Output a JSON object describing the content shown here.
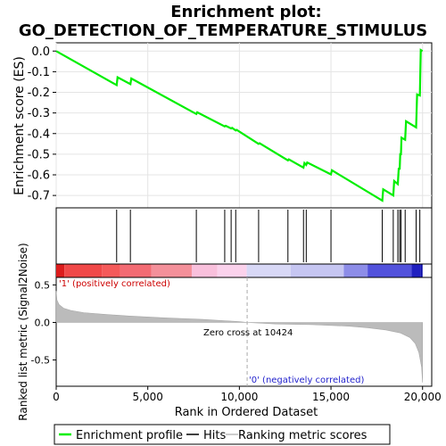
{
  "chart_data": {
    "type": "line",
    "title_line1": "Enrichment plot:",
    "title_line2": "GO_DETECTION_OF_TEMPERATURE_STIMULUS",
    "es_panel": {
      "ylabel": "Enrichment score (ES)",
      "ylim": [
        -0.76,
        0.04
      ],
      "yticks": [
        0.0,
        -0.1,
        -0.2,
        -0.3,
        -0.4,
        -0.5,
        -0.6,
        -0.7
      ],
      "ytick_labels": [
        "0.0",
        "-0.1",
        "-0.2",
        "-0.3",
        "-0.4",
        "-0.5",
        "-0.6",
        "-0.7"
      ],
      "line_color": "#00ee00",
      "points": [
        [
          0,
          0.0
        ],
        [
          3300,
          -0.165
        ],
        [
          3350,
          -0.127
        ],
        [
          4050,
          -0.16
        ],
        [
          4100,
          -0.133
        ],
        [
          7650,
          -0.305
        ],
        [
          7700,
          -0.297
        ],
        [
          9200,
          -0.365
        ],
        [
          9250,
          -0.362
        ],
        [
          9550,
          -0.375
        ],
        [
          9600,
          -0.372
        ],
        [
          9800,
          -0.385
        ],
        [
          9850,
          -0.382
        ],
        [
          11050,
          -0.45
        ],
        [
          11100,
          -0.447
        ],
        [
          12650,
          -0.53
        ],
        [
          12700,
          -0.525
        ],
        [
          13500,
          -0.565
        ],
        [
          13550,
          -0.543
        ],
        [
          13650,
          -0.552
        ],
        [
          13700,
          -0.54
        ],
        [
          15000,
          -0.598
        ],
        [
          15050,
          -0.578
        ],
        [
          17800,
          -0.725
        ],
        [
          17850,
          -0.67
        ],
        [
          18400,
          -0.7
        ],
        [
          18450,
          -0.63
        ],
        [
          18650,
          -0.645
        ],
        [
          18700,
          -0.57
        ],
        [
          18750,
          -0.57
        ],
        [
          18780,
          -0.5
        ],
        [
          18820,
          -0.5
        ],
        [
          18850,
          -0.42
        ],
        [
          19050,
          -0.43
        ],
        [
          19100,
          -0.34
        ],
        [
          19650,
          -0.37
        ],
        [
          19700,
          -0.21
        ],
        [
          19850,
          -0.215
        ],
        [
          19900,
          0.005
        ],
        [
          20000,
          0.0
        ]
      ]
    },
    "hits": [
      3300,
      4050,
      7650,
      9200,
      9550,
      9800,
      11050,
      12650,
      13500,
      13650,
      15000,
      17800,
      18400,
      18650,
      18750,
      18820,
      19050,
      19650,
      19850
    ],
    "heatmap": {
      "segments": [
        [
          0,
          450,
          "#dc1c1c"
        ],
        [
          450,
          2500,
          "#f04848"
        ],
        [
          2500,
          3500,
          "#f55a5a"
        ],
        [
          3500,
          5200,
          "#f36b73"
        ],
        [
          5200,
          7400,
          "#f4909a"
        ],
        [
          7400,
          8800,
          "#f9c0dc"
        ],
        [
          8800,
          10400,
          "#fbd2ec"
        ],
        [
          10400,
          12800,
          "#d8d8f6"
        ],
        [
          12800,
          15700,
          "#c6c6f2"
        ],
        [
          15700,
          17000,
          "#8d8de8"
        ],
        [
          17000,
          19400,
          "#5252dc"
        ],
        [
          19400,
          19900,
          "#2020c0"
        ],
        [
          19900,
          20000,
          "#0c0ca8"
        ]
      ],
      "label_pos": "'1' (positively correlated)",
      "label_neg": "'0' (negatively correlated)"
    },
    "metric_panel": {
      "ylabel": "Ranked list metric (Signal2Noise)",
      "ylim": [
        -0.85,
        0.6
      ],
      "yticks": [
        0.5,
        0.0,
        -0.5
      ],
      "ytick_labels": [
        "0.5",
        "0.0",
        "-0.5"
      ],
      "zero_cross": 10424,
      "zero_cross_label": "Zero cross at 10424",
      "curve": [
        [
          0,
          0.42
        ],
        [
          40,
          0.3
        ],
        [
          150,
          0.24
        ],
        [
          400,
          0.19
        ],
        [
          800,
          0.16
        ],
        [
          1500,
          0.13
        ],
        [
          2500,
          0.11
        ],
        [
          4000,
          0.085
        ],
        [
          6000,
          0.06
        ],
        [
          8000,
          0.04
        ],
        [
          10000,
          0.01
        ],
        [
          10424,
          0.0
        ],
        [
          12000,
          -0.02
        ],
        [
          14000,
          -0.03
        ],
        [
          16000,
          -0.05
        ],
        [
          17000,
          -0.07
        ],
        [
          18000,
          -0.1
        ],
        [
          18800,
          -0.14
        ],
        [
          19300,
          -0.2
        ],
        [
          19600,
          -0.28
        ],
        [
          19800,
          -0.4
        ],
        [
          19950,
          -0.6
        ],
        [
          20000,
          -0.8
        ]
      ]
    },
    "xaxis": {
      "xlabel": "Rank in Ordered Dataset",
      "xlim": [
        0,
        20500
      ],
      "xticks": [
        0,
        5000,
        10000,
        15000,
        20000
      ],
      "xtick_labels": [
        "0",
        "5,000",
        "10,000",
        "15,000",
        "20,000"
      ]
    },
    "legend": {
      "placement": "bottom",
      "entries": [
        {
          "label": "Enrichment profile",
          "color": "#00ee00"
        },
        {
          "label": "Hits",
          "color": "#000000"
        },
        {
          "label": "Ranking metric scores",
          "color": "#bbbbbb"
        }
      ]
    }
  }
}
